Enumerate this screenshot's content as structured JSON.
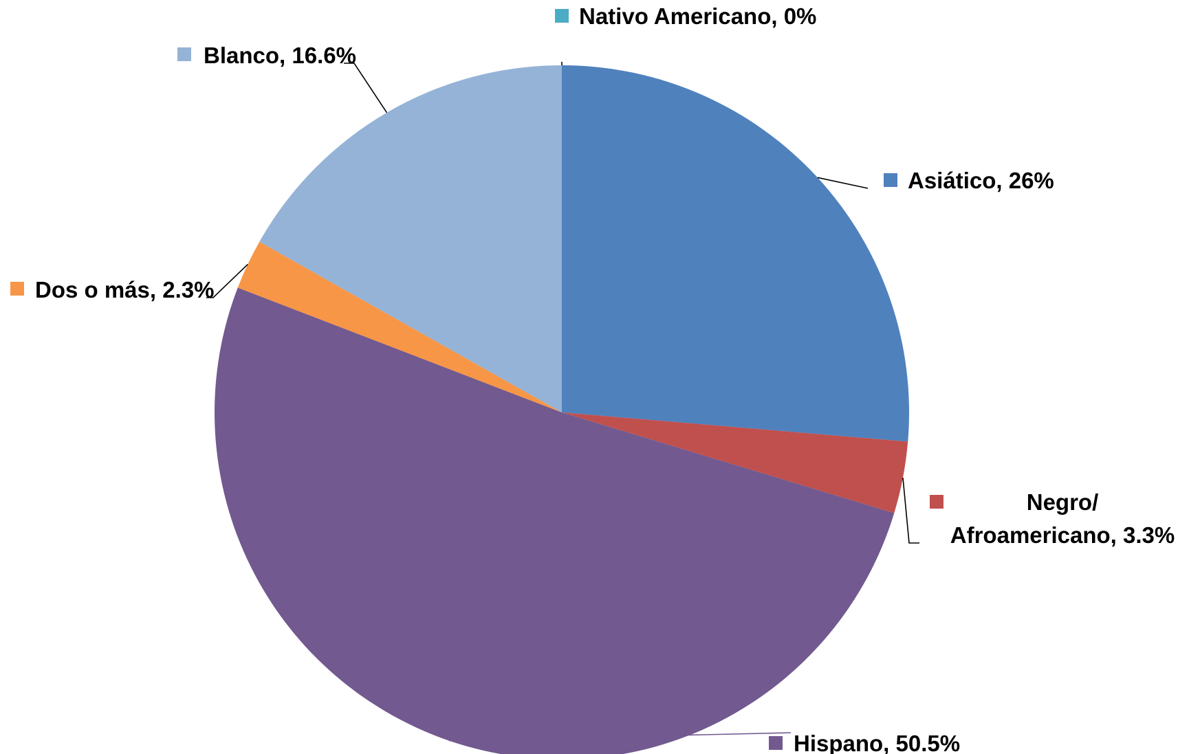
{
  "chart_data": {
    "type": "pie",
    "title": "",
    "slices": [
      {
        "label": "Nativo Americano",
        "value": 0,
        "display": "Nativo Americano, 0%",
        "color": "#4BACC6"
      },
      {
        "label": "Asiático",
        "value": 26,
        "display": "Asiático, 26%",
        "color": "#4F81BD"
      },
      {
        "label": "Negro/ Afroamericano",
        "value": 3.3,
        "display_lines": [
          "Negro/",
          "Afroamericano, 3.3%"
        ],
        "color": "#C0504D"
      },
      {
        "label": "Hispano",
        "value": 50.5,
        "display": "Hispano, 50.5%",
        "color": "#725990"
      },
      {
        "label": "Dos o más",
        "value": 2.3,
        "display": "Dos o más, 2.3%",
        "color": "#F79646"
      },
      {
        "label": "Blanco",
        "value": 16.6,
        "display": "Blanco, 16.6%",
        "color": "#95B3D7"
      }
    ]
  }
}
